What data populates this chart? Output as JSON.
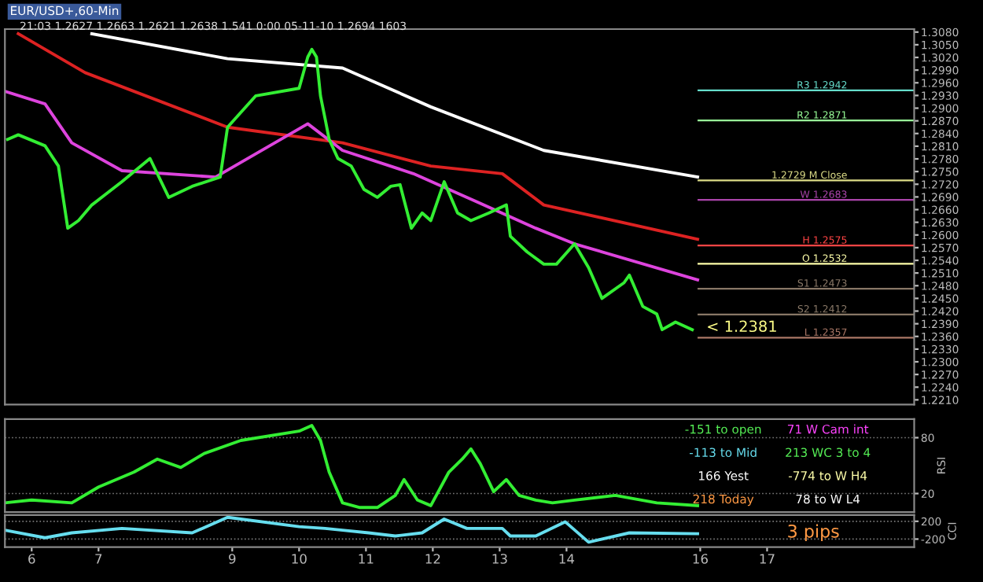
{
  "chart_data": [
    {
      "type": "line",
      "title": "EUR/USD+,60-Min",
      "subtitle": "21:03 1.2627 1.2663 1.2621 1.2638 1.541 0:00 05-11-10 1.2694 1603",
      "xlim": [
        5.6,
        19.2
      ],
      "ylim": [
        1.2199,
        1.3087
      ],
      "tick_labels": "y",
      "grid": false,
      "yticks": [
        {
          "value": 1.308,
          "label": "1.3080"
        },
        {
          "value": 1.305,
          "label": "1.3050"
        },
        {
          "value": 1.302,
          "label": "1.3020"
        },
        {
          "value": 1.299,
          "label": "1.2990"
        },
        {
          "value": 1.296,
          "label": "1.2960"
        },
        {
          "value": 1.293,
          "label": "1.2930"
        },
        {
          "value": 1.29,
          "label": "1.2900"
        },
        {
          "value": 1.287,
          "label": "1.2870"
        },
        {
          "value": 1.284,
          "label": "1.2840"
        },
        {
          "value": 1.281,
          "label": "1.2810"
        },
        {
          "value": 1.278,
          "label": "1.2780"
        },
        {
          "value": 1.275,
          "label": "1.2750"
        },
        {
          "value": 1.272,
          "label": "1.2720"
        },
        {
          "value": 1.269,
          "label": "1.2690"
        },
        {
          "value": 1.266,
          "label": "1.2660"
        },
        {
          "value": 1.263,
          "label": "1.2630"
        },
        {
          "value": 1.26,
          "label": "1.2600"
        },
        {
          "value": 1.257,
          "label": "1.2570"
        },
        {
          "value": 1.254,
          "label": "1.2540"
        },
        {
          "value": 1.251,
          "label": "1.2510"
        },
        {
          "value": 1.248,
          "label": "1.2480"
        },
        {
          "value": 1.245,
          "label": "1.2450"
        },
        {
          "value": 1.242,
          "label": "1.2420"
        },
        {
          "value": 1.239,
          "label": "1.2390"
        },
        {
          "value": 1.236,
          "label": "1.2360"
        },
        {
          "value": 1.233,
          "label": "1.2330"
        },
        {
          "value": 1.23,
          "label": "1.2300"
        },
        {
          "value": 1.227,
          "label": "1.2270"
        },
        {
          "value": 1.224,
          "label": "1.2240"
        },
        {
          "value": 1.221,
          "label": "1.2210"
        }
      ],
      "series": [
        {
          "color": "#ffffff",
          "x": [
            6.9,
            8.93,
            10.65,
            11.97,
            13.66,
            15.96
          ],
          "values": [
            1.3076,
            1.3017,
            1.2995,
            1.2903,
            1.28,
            1.2737
          ]
        },
        {
          "color": "#dd2222",
          "x": [
            5.8,
            6.8,
            8.93,
            10.65,
            11.97,
            13.04,
            13.66,
            15.96
          ],
          "values": [
            1.3076,
            1.2984,
            1.2855,
            1.2818,
            1.2763,
            1.2745,
            1.2671,
            1.259
          ]
        },
        {
          "color": "#dd44dd",
          "x": [
            5.6,
            6.2,
            6.6,
            7.35,
            8.75,
            10.13,
            10.65,
            11.71,
            12.51,
            13.54,
            14.12,
            15.96
          ],
          "values": [
            1.294,
            1.291,
            1.2818,
            1.2752,
            1.2737,
            1.2863,
            1.28,
            1.2745,
            1.2689,
            1.2616,
            1.2579,
            1.2494
          ]
        },
        {
          "color": "#33ee33",
          "x": [
            5.64,
            5.8,
            6.2,
            6.4,
            6.54,
            6.7,
            6.9,
            7.35,
            7.77,
            8.05,
            8.4,
            8.82,
            8.93,
            9.35,
            10.0,
            10.13,
            10.19,
            10.26,
            10.32,
            10.39,
            10.45,
            10.58,
            10.78,
            10.97,
            11.17,
            11.37,
            11.51,
            11.68,
            11.84,
            11.97,
            12.17,
            12.37,
            12.57,
            12.84,
            13.1,
            13.16,
            13.41,
            13.66,
            13.85,
            14.12,
            14.33,
            14.53,
            14.86,
            14.94,
            15.14,
            15.35,
            15.43,
            15.63,
            15.88
          ],
          "values": [
            1.2826,
            1.2837,
            1.2811,
            1.2763,
            1.2616,
            1.2634,
            1.2671,
            1.2726,
            1.2781,
            1.2689,
            1.2715,
            1.2737,
            1.2855,
            1.2929,
            1.2947,
            1.3021,
            1.3039,
            1.3021,
            1.2929,
            1.2874,
            1.2826,
            1.2781,
            1.2763,
            1.2708,
            1.2689,
            1.2715,
            1.2719,
            1.2616,
            1.2652,
            1.2634,
            1.2726,
            1.2652,
            1.2634,
            1.2652,
            1.2671,
            1.2597,
            1.256,
            1.2531,
            1.2531,
            1.2579,
            1.2523,
            1.245,
            1.2487,
            1.2505,
            1.2431,
            1.2413,
            1.2376,
            1.2394,
            1.2376
          ]
        }
      ],
      "ref_lines": [
        {
          "axis": "y",
          "value": 1.2942,
          "label": "R3 1.2942",
          "color": "#66ddcc"
        },
        {
          "axis": "y",
          "value": 1.2871,
          "label": "R2 1.2871",
          "color": "#99ff99"
        },
        {
          "axis": "y",
          "value": 1.2729,
          "label": "1.2729 M Close",
          "color": "#dddd88"
        },
        {
          "axis": "y",
          "value": 1.2683,
          "label": "W 1.2683",
          "color": "#aa44aa"
        },
        {
          "axis": "y",
          "value": 1.2575,
          "label": "H 1.2575",
          "color": "#ff4444"
        },
        {
          "axis": "y",
          "value": 1.2532,
          "label": "O 1.2532",
          "color": "#ffffaa"
        },
        {
          "axis": "y",
          "value": 1.2473,
          "label": "S1 1.2473",
          "color": "#887766"
        },
        {
          "axis": "y",
          "value": 1.2412,
          "label": "S2 1.2412",
          "color": "#887766"
        },
        {
          "axis": "y",
          "value": 1.2357,
          "label": "L 1.2357",
          "color": "#aa7766"
        }
      ],
      "annotations": [
        {
          "text": "< 1.2381",
          "x": 15.96,
          "y": 1.2381
        }
      ]
    },
    {
      "type": "line",
      "xlim": [
        5.6,
        19.2
      ],
      "ylim": [
        0,
        100
      ],
      "tick_labels": "y",
      "grid": "y",
      "ylabel": "RSI",
      "yticks": [
        20,
        80
      ],
      "series": [
        {
          "color": "#33ee33",
          "x": [
            5.6,
            6.0,
            6.6,
            7.0,
            7.53,
            7.88,
            8.23,
            8.58,
            9.13,
            10.0,
            10.19,
            10.32,
            10.45,
            10.65,
            10.91,
            11.17,
            11.44,
            11.57,
            11.77,
            11.97,
            12.24,
            12.44,
            12.57,
            12.71,
            12.91,
            13.1,
            13.29,
            13.54,
            13.79,
            14.12,
            14.73,
            15.35,
            15.96
          ],
          "values": [
            10,
            13,
            10,
            27,
            43,
            57,
            48,
            63,
            77,
            87,
            93,
            77,
            43,
            10,
            5,
            5,
            18,
            35,
            13,
            7,
            43,
            57,
            68,
            52,
            22,
            35,
            18,
            13,
            10,
            13,
            18,
            10,
            7
          ]
        }
      ],
      "annotations": [
        "-151 to open",
        "71 W Cam int",
        "-113 to Mid",
        "213 WC 3 to 4",
        "166 Yest",
        "-774 to W H4",
        "218 Today",
        "78 to W L4"
      ]
    },
    {
      "type": "line",
      "xlim": [
        5.6,
        19.2
      ],
      "ylim": [
        -380,
        340
      ],
      "grid": "y",
      "ylabel": "CCI",
      "yticks": [
        -200,
        200
      ],
      "xticks": [
        6,
        7,
        9,
        10,
        11,
        12,
        13,
        14,
        16,
        17
      ],
      "series": [
        {
          "color": "#66ddee",
          "x": [
            5.6,
            6.2,
            6.6,
            7.35,
            8.4,
            8.93,
            10.0,
            10.39,
            10.65,
            11.04,
            11.44,
            11.84,
            12.17,
            12.51,
            13.04,
            13.16,
            13.54,
            13.98,
            14.33,
            14.94,
            15.96
          ],
          "values": [
            0,
            -170,
            -60,
            40,
            -60,
            290,
            80,
            40,
            0,
            -60,
            -130,
            -60,
            250,
            40,
            40,
            -130,
            -130,
            190,
            -270,
            -60,
            -80
          ]
        }
      ],
      "annotations": [
        "3 pips"
      ]
    }
  ]
}
